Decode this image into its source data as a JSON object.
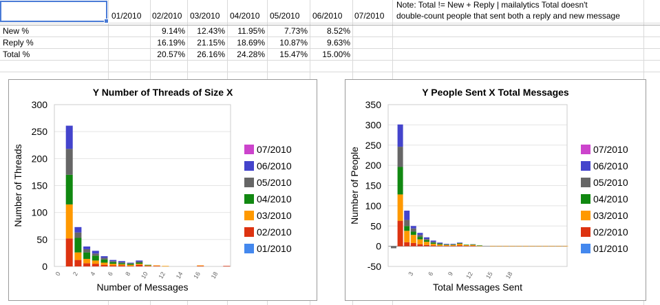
{
  "sheet": {
    "header_row": [
      "01/2010",
      "02/2010",
      "03/2010",
      "04/2010",
      "05/2010",
      "06/2010",
      "07/2010"
    ],
    "note_lines": [
      "Note: Total != New + Reply | mailalytics Total doesn't",
      "double-count people that sent both a reply and new message"
    ],
    "rows": [
      {
        "label": "New %",
        "values": [
          "",
          "9.14%",
          "12.43%",
          "11.95%",
          "7.73%",
          "8.52%",
          ""
        ]
      },
      {
        "label": "Reply %",
        "values": [
          "",
          "16.19%",
          "21.15%",
          "18.69%",
          "10.87%",
          "9.63%",
          ""
        ]
      },
      {
        "label": "Total %",
        "values": [
          "",
          "20.57%",
          "26.16%",
          "24.28%",
          "15.47%",
          "15.00%",
          ""
        ]
      }
    ]
  },
  "colors": {
    "07/2010": "#cc44cc",
    "06/2010": "#4444cc",
    "05/2010": "#666666",
    "04/2010": "#118811",
    "03/2010": "#ff9900",
    "02/2010": "#dd3311",
    "01/2010": "#4488ee"
  },
  "chart_data": [
    {
      "type": "bar",
      "stacked": true,
      "title": "Y Number of Threads of Size X",
      "xlabel": "Number of Messages",
      "ylabel": "Number of Threads",
      "ylim": [
        0,
        300
      ],
      "y_ticks": [
        0,
        50,
        100,
        150,
        200,
        250,
        300
      ],
      "x_tick_labels": [
        "0",
        "2",
        "4",
        "6",
        "8",
        "10",
        "12",
        "14",
        "16",
        "18"
      ],
      "categories": [
        0,
        1,
        2,
        3,
        4,
        5,
        6,
        7,
        8,
        9,
        10,
        11,
        12,
        13,
        14,
        15,
        16,
        17,
        18,
        19
      ],
      "legend": [
        "07/2010",
        "06/2010",
        "05/2010",
        "04/2010",
        "03/2010",
        "02/2010",
        "01/2010"
      ],
      "legend_position": "right",
      "series": [
        {
          "name": "02/2010",
          "values": [
            0,
            52,
            12,
            6,
            5,
            3,
            2,
            2,
            1,
            3,
            1,
            1,
            0,
            0,
            0,
            0,
            1,
            0,
            0,
            1
          ]
        },
        {
          "name": "03/2010",
          "values": [
            0,
            63,
            14,
            8,
            6,
            4,
            3,
            2,
            2,
            2,
            1,
            1,
            1,
            0,
            0,
            0,
            1,
            0,
            0,
            0
          ]
        },
        {
          "name": "04/2010",
          "values": [
            0,
            55,
            27,
            12,
            9,
            6,
            3,
            2,
            2,
            2,
            1,
            0,
            0,
            0,
            0,
            0,
            0,
            0,
            0,
            0
          ]
        },
        {
          "name": "05/2010",
          "values": [
            0,
            48,
            10,
            6,
            4,
            3,
            2,
            2,
            1,
            2,
            0,
            0,
            0,
            0,
            0,
            0,
            0,
            0,
            0,
            0
          ]
        },
        {
          "name": "06/2010",
          "values": [
            0,
            43,
            10,
            5,
            5,
            3,
            2,
            2,
            1,
            2,
            0,
            0,
            0,
            0,
            0,
            0,
            0,
            0,
            0,
            0
          ]
        },
        {
          "name": "07/2010",
          "values": [
            0,
            0,
            0,
            0,
            0,
            0,
            0,
            0,
            0,
            0,
            0,
            0,
            0,
            0,
            0,
            0,
            0,
            0,
            0,
            0
          ]
        },
        {
          "name": "01/2010",
          "values": [
            0,
            0,
            0,
            0,
            0,
            0,
            0,
            0,
            0,
            0,
            0,
            0,
            0,
            0,
            0,
            0,
            0,
            0,
            0,
            0
          ]
        }
      ]
    },
    {
      "type": "bar",
      "stacked": true,
      "title": "Y People Sent X Total Messages",
      "xlabel": "Total Messages Sent",
      "ylabel": "Number of People",
      "ylim": [
        -50,
        350
      ],
      "y_ticks": [
        -50,
        0,
        50,
        100,
        150,
        200,
        250,
        300,
        350
      ],
      "x_tick_labels": [
        "3",
        "6",
        "9",
        "12",
        "15",
        "18"
      ],
      "categories": [
        0,
        1,
        2,
        3,
        4,
        5,
        6,
        7,
        8,
        9,
        10,
        11,
        12,
        13,
        14,
        15,
        16,
        17,
        18,
        19,
        20,
        21,
        22,
        23,
        24,
        25,
        26
      ],
      "legend": [
        "07/2010",
        "06/2010",
        "05/2010",
        "04/2010",
        "03/2010",
        "02/2010",
        "01/2010"
      ],
      "legend_position": "right",
      "series": [
        {
          "name": "02/2010",
          "values": [
            0,
            63,
            10,
            8,
            5,
            3,
            2,
            1,
            1,
            1,
            2,
            1,
            1,
            0,
            0,
            0,
            0,
            0,
            0,
            0,
            0,
            0,
            0,
            0,
            0,
            0,
            0
          ]
        },
        {
          "name": "03/2010",
          "values": [
            0,
            65,
            28,
            20,
            12,
            8,
            4,
            3,
            2,
            2,
            4,
            2,
            2,
            1,
            0,
            1,
            1,
            1,
            1,
            1,
            1,
            1,
            1,
            1,
            1,
            1,
            1
          ]
        },
        {
          "name": "04/2010",
          "values": [
            0,
            68,
            12,
            8,
            6,
            4,
            3,
            2,
            1,
            1,
            1,
            1,
            1,
            1,
            0,
            0,
            0,
            0,
            0,
            0,
            0,
            0,
            0,
            0,
            0,
            0,
            0
          ]
        },
        {
          "name": "05/2010",
          "values": [
            -5,
            50,
            15,
            8,
            5,
            3,
            2,
            1,
            1,
            1,
            1,
            0,
            1,
            0,
            0,
            0,
            0,
            0,
            0,
            0,
            0,
            0,
            0,
            0,
            0,
            0,
            0
          ]
        },
        {
          "name": "06/2010",
          "values": [
            0,
            55,
            23,
            6,
            5,
            4,
            3,
            2,
            1,
            1,
            1,
            0,
            0,
            0,
            0,
            0,
            0,
            0,
            0,
            0,
            0,
            0,
            0,
            0,
            0,
            0,
            0
          ]
        },
        {
          "name": "07/2010",
          "values": [
            0,
            0,
            0,
            0,
            0,
            0,
            0,
            0,
            0,
            0,
            0,
            0,
            0,
            0,
            0,
            0,
            0,
            0,
            0,
            0,
            0,
            0,
            0,
            0,
            0,
            0,
            0
          ]
        },
        {
          "name": "01/2010",
          "values": [
            0,
            0,
            0,
            0,
            0,
            0,
            0,
            0,
            0,
            0,
            0,
            0,
            0,
            0,
            0,
            0,
            0,
            0,
            0,
            0,
            0,
            0,
            0,
            0,
            0,
            0,
            0
          ]
        }
      ]
    }
  ]
}
